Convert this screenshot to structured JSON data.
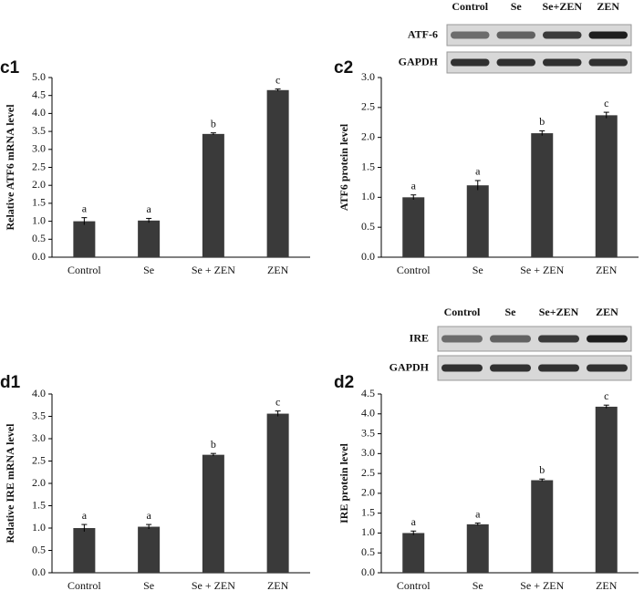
{
  "chart_data": [
    {
      "type": "bar",
      "panel_label": "c1",
      "y_label": "Relative ATF6 mRNA level",
      "categories": [
        "Control",
        "Se",
        "Se + ZEN",
        "ZEN"
      ],
      "values": [
        1.0,
        1.02,
        3.43,
        4.65
      ],
      "errors": [
        0.1,
        0.06,
        0.03,
        0.03
      ],
      "letters": [
        "a",
        "a",
        "b",
        "c"
      ],
      "color": "#3a3a3a",
      "ylim": [
        0,
        5
      ],
      "yticks": [
        {
          "value": 0,
          "label": "0.0"
        },
        0.5,
        {
          "value": 1,
          "label": "1.0"
        },
        1.5,
        {
          "value": 2,
          "label": "2.0"
        },
        2.5,
        {
          "value": 3,
          "label": "3.0"
        },
        3.5,
        {
          "value": 4,
          "label": "4.0"
        },
        4.5,
        {
          "value": 5,
          "label": "5.0"
        }
      ]
    },
    {
      "type": "bar",
      "panel_label": "c2",
      "y_label": "ATF6 protein level",
      "categories": [
        "Control",
        "Se",
        "Se + ZEN",
        "ZEN"
      ],
      "values": [
        1.0,
        1.2,
        2.07,
        2.37
      ],
      "errors": [
        0.04,
        0.08,
        0.04,
        0.05
      ],
      "letters": [
        "a",
        "a",
        "b",
        "c"
      ],
      "color": "#3a3a3a",
      "ylim": [
        0,
        3
      ],
      "yticks": [
        {
          "value": 0,
          "label": "0.0"
        },
        0.5,
        {
          "value": 1,
          "label": "1.0"
        },
        1.5,
        {
          "value": 2,
          "label": "2.0"
        },
        2.5,
        {
          "value": 3,
          "label": "3.0"
        }
      ],
      "blot": {
        "lanes": [
          "Control",
          "Se",
          "Se+ZEN",
          "ZEN"
        ],
        "rows": [
          "ATF-6",
          "GAPDH"
        ]
      }
    },
    {
      "type": "bar",
      "panel_label": "d1",
      "y_label": "Relative IRE mRNA level",
      "categories": [
        "Control",
        "Se",
        "Se + ZEN",
        "ZEN"
      ],
      "values": [
        1.0,
        1.03,
        2.64,
        3.56
      ],
      "errors": [
        0.08,
        0.05,
        0.03,
        0.06
      ],
      "letters": [
        "a",
        "a",
        "b",
        "c"
      ],
      "color": "#3a3a3a",
      "ylim": [
        0,
        4
      ],
      "yticks": [
        {
          "value": 0,
          "label": "0.0"
        },
        0.5,
        {
          "value": 1,
          "label": "1.0"
        },
        1.5,
        {
          "value": 2,
          "label": "2.0"
        },
        2.5,
        {
          "value": 3,
          "label": "3.0"
        },
        3.5,
        {
          "value": 4,
          "label": "4.0"
        }
      ]
    },
    {
      "type": "bar",
      "panel_label": "d2",
      "y_label": "IRE protein level",
      "categories": [
        "Control",
        "Se",
        "Se + ZEN",
        "ZEN"
      ],
      "values": [
        1.0,
        1.22,
        2.33,
        4.18
      ],
      "errors": [
        0.05,
        0.03,
        0.03,
        0.04
      ],
      "letters": [
        "a",
        "a",
        "b",
        "c"
      ],
      "color": "#3a3a3a",
      "ylim": [
        0,
        4.5
      ],
      "yticks": [
        {
          "value": 0,
          "label": "0.0"
        },
        0.5,
        {
          "value": 1,
          "label": "1.0"
        },
        1.5,
        {
          "value": 2,
          "label": "2.0"
        },
        2.5,
        {
          "value": 3,
          "label": "3.0"
        },
        3.5,
        {
          "value": 4,
          "label": "4.0"
        },
        4.5
      ],
      "blot": {
        "lanes": [
          "Control",
          "Se",
          "Se+ZEN",
          "ZEN"
        ],
        "rows": [
          "IRE",
          "GAPDH"
        ]
      }
    }
  ]
}
